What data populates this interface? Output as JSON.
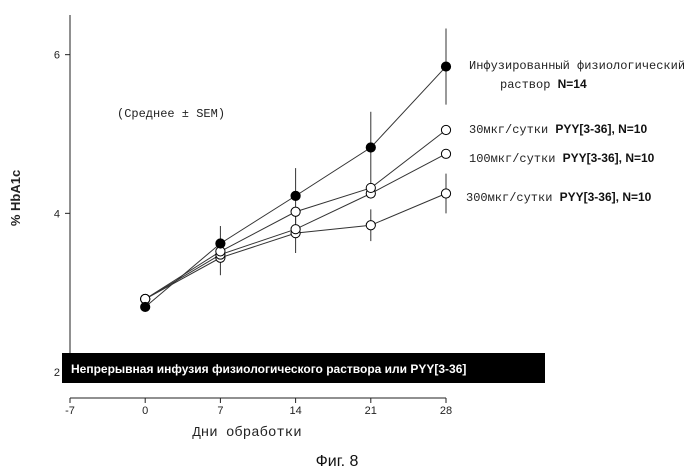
{
  "chart_data": {
    "type": "line",
    "ylabel": "% HbA1c",
    "xlabel": "Дни обработки",
    "x_ticks": [
      "-7",
      "0",
      "7",
      "14",
      "21",
      "28"
    ],
    "y_ticks": [
      "2",
      "4",
      "6"
    ],
    "xlim": [
      -7,
      28
    ],
    "ylim": [
      2,
      6.5
    ],
    "annotation": "(Среднее ± SEM)",
    "banner": "Непрерывная инфузия физиологического раствора или PYY[3-36]",
    "caption": "Фиг. 8",
    "series": [
      {
        "legend_line1": "Инфузированный физиологический",
        "legend_line2_prefix": "раствор",
        "legend_line2_bold": "N=14",
        "marker": "filled",
        "x": [
          0,
          7,
          14,
          21,
          28
        ],
        "y": [
          2.82,
          3.62,
          4.22,
          4.83,
          5.85
        ],
        "err": [
          0.0,
          0.22,
          0.35,
          0.45,
          0.48
        ]
      },
      {
        "legend_mono": "30мкг/сутки",
        "legend_bold": "PYY[3-36], N=10",
        "marker": "open",
        "x": [
          0,
          7,
          14,
          21,
          28
        ],
        "y": [
          2.92,
          3.52,
          4.02,
          4.32,
          5.05
        ],
        "err": [
          0.0,
          0.0,
          0.0,
          0.0,
          0.0
        ]
      },
      {
        "legend_mono": "100мкг/сутки",
        "legend_bold": "PYY[3-36], N=10",
        "marker": "open",
        "x": [
          0,
          7,
          14,
          21,
          28
        ],
        "y": [
          2.92,
          3.48,
          3.8,
          4.25,
          4.75
        ],
        "err": [
          0.0,
          0.0,
          0.0,
          0.0,
          0.0
        ]
      },
      {
        "legend_mono": "300мкг/сутки",
        "legend_bold": "PYY[3-36], N=10",
        "marker": "open",
        "x": [
          0,
          7,
          14,
          21,
          28
        ],
        "y": [
          2.92,
          3.44,
          3.75,
          3.85,
          4.25
        ],
        "err": [
          0.0,
          0.22,
          0.25,
          0.2,
          0.25
        ]
      }
    ]
  }
}
